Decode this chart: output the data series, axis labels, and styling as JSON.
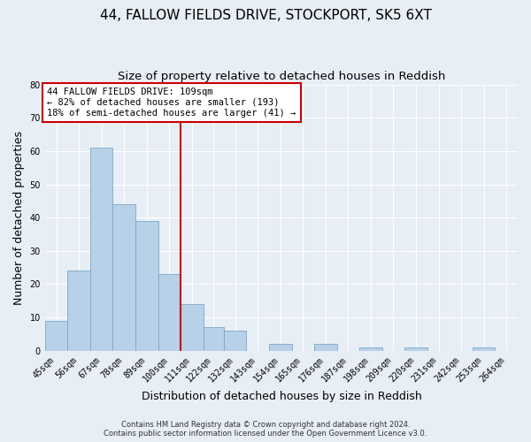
{
  "title": "44, FALLOW FIELDS DRIVE, STOCKPORT, SK5 6XT",
  "subtitle": "Size of property relative to detached houses in Reddish",
  "xlabel": "Distribution of detached houses by size in Reddish",
  "ylabel": "Number of detached properties",
  "bin_labels": [
    "45sqm",
    "56sqm",
    "67sqm",
    "78sqm",
    "89sqm",
    "100sqm",
    "111sqm",
    "122sqm",
    "132sqm",
    "143sqm",
    "154sqm",
    "165sqm",
    "176sqm",
    "187sqm",
    "198sqm",
    "209sqm",
    "220sqm",
    "231sqm",
    "242sqm",
    "253sqm",
    "264sqm"
  ],
  "bin_edges": [
    45,
    56,
    67,
    78,
    89,
    100,
    111,
    122,
    132,
    143,
    154,
    165,
    176,
    187,
    198,
    209,
    220,
    231,
    242,
    253,
    264,
    275
  ],
  "counts": [
    9,
    24,
    61,
    44,
    39,
    23,
    14,
    7,
    6,
    0,
    2,
    0,
    2,
    0,
    1,
    0,
    1,
    0,
    0,
    1,
    0
  ],
  "vline_x": 111,
  "bar_color": "#b8d0e8",
  "bar_edge_color": "#7aaac8",
  "vline_color": "#cc0000",
  "annotation_line1": "44 FALLOW FIELDS DRIVE: 109sqm",
  "annotation_line2": "← 82% of detached houses are smaller (193)",
  "annotation_line3": "18% of semi-detached houses are larger (41) →",
  "annotation_box_facecolor": "#ffffff",
  "annotation_box_edgecolor": "#cc0000",
  "ylim": [
    0,
    80
  ],
  "yticks": [
    0,
    10,
    20,
    30,
    40,
    50,
    60,
    70,
    80
  ],
  "background_color": "#e8eef5",
  "grid_color": "#ffffff",
  "footer_line1": "Contains HM Land Registry data © Crown copyright and database right 2024.",
  "footer_line2": "Contains public sector information licensed under the Open Government Licence v3.0.",
  "title_fontsize": 11,
  "subtitle_fontsize": 9.5,
  "xlabel_fontsize": 9,
  "ylabel_fontsize": 9,
  "tick_fontsize": 7,
  "annotation_fontsize": 7.5,
  "footer_fontsize": 6
}
